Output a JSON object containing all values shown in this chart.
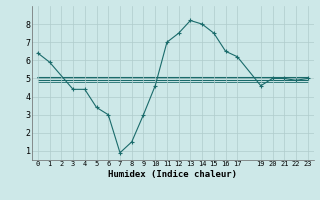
{
  "xlabel": "Humidex (Indice chaleur)",
  "background_color": "#cde8e8",
  "grid_color": "#b8d8d8",
  "line_color": "#1a6b6b",
  "xlim": [
    -0.5,
    23.5
  ],
  "ylim": [
    0.5,
    9.0
  ],
  "xticks": [
    0,
    1,
    2,
    3,
    4,
    5,
    6,
    7,
    8,
    9,
    10,
    11,
    12,
    13,
    14,
    15,
    16,
    17,
    19,
    20,
    21,
    22,
    23
  ],
  "yticks": [
    1,
    2,
    3,
    4,
    5,
    6,
    7,
    8
  ],
  "series_main": {
    "x": [
      0,
      1,
      3,
      4,
      5,
      6,
      7,
      8,
      9,
      10,
      11,
      12,
      13,
      14,
      15,
      16,
      17,
      19,
      20,
      21,
      22,
      23
    ],
    "y": [
      6.4,
      5.9,
      4.4,
      4.4,
      3.4,
      3.0,
      0.9,
      1.5,
      3.0,
      4.6,
      7.0,
      7.5,
      8.2,
      8.0,
      7.5,
      6.5,
      6.2,
      4.6,
      5.0,
      5.0,
      4.9,
      5.0
    ]
  },
  "flat_lines": [
    {
      "x": [
        0,
        23
      ],
      "y": [
        5.0,
        5.0
      ],
      "lw": 1.2
    },
    {
      "x": [
        0,
        23
      ],
      "y": [
        4.9,
        4.9
      ],
      "lw": 0.8
    },
    {
      "x": [
        0,
        23
      ],
      "y": [
        5.1,
        5.1
      ],
      "lw": 0.8
    },
    {
      "x": [
        0,
        23
      ],
      "y": [
        4.8,
        4.8
      ],
      "lw": 0.6
    }
  ]
}
